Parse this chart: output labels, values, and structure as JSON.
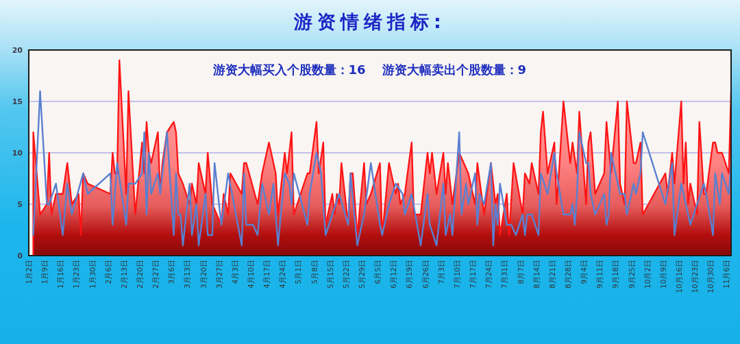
{
  "chart_data": {
    "type": "line",
    "title": "游资情绪指标:",
    "annotations": [
      "游资大幅买入个股数量：16",
      "游资大幅卖出个股数量：9"
    ],
    "xlim": [
      "--01-02",
      "--11-08"
    ],
    "xticks": [
      {
        "value": "--01-02",
        "label": "1月2日"
      },
      {
        "value": "--01-09",
        "label": "1月9日"
      },
      {
        "value": "--01-16",
        "label": "1月16日"
      },
      {
        "value": "--01-23",
        "label": "1月23日"
      },
      {
        "value": "--01-30",
        "label": "1月30日"
      },
      {
        "value": "--02-06",
        "label": "2月6日"
      },
      {
        "value": "--02-13",
        "label": "2月13日"
      },
      {
        "value": "--02-20",
        "label": "2月20日"
      },
      {
        "value": "--02-27",
        "label": "2月27日"
      },
      {
        "value": "--03-06",
        "label": "3月6日"
      },
      {
        "value": "--03-13",
        "label": "3月13日"
      },
      {
        "value": "--03-20",
        "label": "3月20日"
      },
      {
        "value": "--03-27",
        "label": "3月27日"
      },
      {
        "value": "--04-03",
        "label": "4月3日"
      },
      {
        "value": "--04-10",
        "label": "4月10日"
      },
      {
        "value": "--04-17",
        "label": "4月17日"
      },
      {
        "value": "--04-24",
        "label": "4月24日"
      },
      {
        "value": "--05-01",
        "label": "5月1日"
      },
      {
        "value": "--05-08",
        "label": "5月8日"
      },
      {
        "value": "--05-15",
        "label": "5月15日"
      },
      {
        "value": "--05-22",
        "label": "5月22日"
      },
      {
        "value": "--05-29",
        "label": "5月29日"
      },
      {
        "value": "--06-05",
        "label": "6月5日"
      },
      {
        "value": "--06-12",
        "label": "6月12日"
      },
      {
        "value": "--06-19",
        "label": "6月19日"
      },
      {
        "value": "--06-26",
        "label": "6月26日"
      },
      {
        "value": "--07-03",
        "label": "7月3日"
      },
      {
        "value": "--07-10",
        "label": "7月10日"
      },
      {
        "value": "--07-17",
        "label": "7月17日"
      },
      {
        "value": "--07-24",
        "label": "7月24日"
      },
      {
        "value": "--07-31",
        "label": "7月31日"
      },
      {
        "value": "--08-07",
        "label": "8月7日"
      },
      {
        "value": "--08-14",
        "label": "8月14日"
      },
      {
        "value": "--08-21",
        "label": "8月21日"
      },
      {
        "value": "--08-28",
        "label": "8月28日"
      },
      {
        "value": "--09-04",
        "label": "9月4日"
      },
      {
        "value": "--09-11",
        "label": "9月11日"
      },
      {
        "value": "--09-18",
        "label": "9月18日"
      },
      {
        "value": "--09-25",
        "label": "9月25日"
      },
      {
        "value": "--10-02",
        "label": "10月2日"
      },
      {
        "value": "--10-09",
        "label": "10月9日"
      },
      {
        "value": "--10-16",
        "label": "10月16日"
      },
      {
        "value": "--10-23",
        "label": "10月23日"
      },
      {
        "value": "--10-30",
        "label": "10月30日"
      },
      {
        "value": "--11-06",
        "label": "11月6日"
      }
    ],
    "ylim": [
      0,
      20
    ],
    "yticks": [
      0,
      5,
      10,
      15,
      20
    ],
    "grid": "y",
    "series": [
      {
        "type": "area",
        "color": "#ff1414",
        "x": [
          "--01-04",
          "--01-07",
          "--01-10",
          "--01-11",
          "--01-12",
          "--01-14",
          "--01-17",
          "--01-19",
          "--01-21",
          "--01-24",
          "--01-25",
          "--01-26",
          "--01-28",
          "--02-07",
          "--02-08",
          "--02-09",
          "--02-10",
          "--02-11",
          "--02-14",
          "--02-15",
          "--02-18",
          "--02-21",
          "--02-22",
          "--02-23",
          "--02-24",
          "--02-25",
          "--02-28",
          "--03-01",
          "--03-02",
          "--03-04",
          "--03-07",
          "--03-08",
          "--03-09",
          "--03-11",
          "--03-14",
          "--03-15",
          "--03-17",
          "--03-18",
          "--03-21",
          "--03-22",
          "--03-24",
          "--03-28",
          "--03-29",
          "--03-31",
          "--04-01",
          "--04-06",
          "--04-07",
          "--04-08",
          "--04-13",
          "--04-15",
          "--04-18",
          "--04-21",
          "--04-22",
          "--04-25",
          "--04-26",
          "--04-28",
          "--04-29",
          "--05-05",
          "--05-06",
          "--05-09",
          "--05-10",
          "--05-12",
          "--05-13",
          "--05-16",
          "--05-17",
          "--05-18",
          "--05-19",
          "--05-20",
          "--05-23",
          "--05-24",
          "--05-25",
          "--05-27",
          "--05-30",
          "--05-31",
          "--06-02",
          "--06-06",
          "--06-07",
          "--06-10",
          "--06-13",
          "--06-14",
          "--06-15",
          "--06-17",
          "--06-20",
          "--06-21",
          "--06-24",
          "--06-27",
          "--06-28",
          "--06-29",
          "--07-01",
          "--07-04",
          "--07-05",
          "--07-06",
          "--07-08",
          "--07-11",
          "--07-15",
          "--07-18",
          "--07-19",
          "--07-22",
          "--07-25",
          "--07-27",
          "--07-28",
          "--07-29",
          "--08-01",
          "--08-02",
          "--08-04",
          "--08-08",
          "--08-09",
          "--08-11",
          "--08-12",
          "--08-15",
          "--08-16",
          "--08-17",
          "--08-19",
          "--08-22",
          "--08-23",
          "--08-24",
          "--08-26",
          "--08-29",
          "--08-30",
          "--09-01",
          "--09-02",
          "--09-05",
          "--09-06",
          "--09-07",
          "--09-09",
          "--09-13",
          "--09-14",
          "--09-16",
          "--09-19",
          "--09-20",
          "--09-22",
          "--09-23",
          "--09-26",
          "--09-27",
          "--09-29",
          "--09-30",
          "--10-10",
          "--10-11",
          "--10-13",
          "--10-14",
          "--10-17",
          "--10-18",
          "--10-19",
          "--10-20",
          "--10-21",
          "--10-24",
          "--10-25",
          "--10-27",
          "--10-28",
          "--10-31",
          "--11-01",
          "--11-02",
          "--11-04",
          "--11-07",
          "--11-08"
        ],
        "values": [
          12,
          4,
          5,
          10,
          4,
          6,
          6,
          9,
          5,
          6,
          2,
          8,
          7,
          6,
          10,
          8,
          8,
          19,
          6,
          16,
          4,
          11,
          8,
          13,
          10,
          9,
          12,
          6,
          9,
          12,
          13,
          12,
          8,
          7,
          5,
          7,
          5,
          9,
          6,
          10,
          5,
          3,
          6,
          4,
          8,
          6,
          9,
          9,
          5,
          8,
          11,
          8,
          4,
          10,
          8,
          12,
          4,
          8,
          8,
          13,
          8,
          11,
          3,
          6,
          4,
          6,
          5,
          9,
          3,
          8,
          8,
          2,
          9,
          5,
          6,
          9,
          2,
          9,
          6,
          7,
          5,
          6,
          11,
          4,
          4,
          10,
          8,
          10,
          6,
          10,
          6,
          9,
          5,
          10,
          8,
          5,
          9,
          4,
          9,
          5,
          6,
          2,
          6,
          2,
          9,
          4,
          8,
          7,
          9,
          6,
          12,
          14,
          8,
          11,
          5,
          8,
          15,
          9,
          11,
          8,
          14,
          5,
          11,
          12,
          6,
          8,
          13,
          8,
          15,
          7,
          5,
          15,
          9,
          9,
          11,
          4,
          8,
          6,
          10,
          7,
          15,
          7,
          11,
          5,
          7,
          4,
          13,
          6,
          6,
          11,
          11,
          10,
          10,
          8,
          16
        ]
      },
      {
        "color": "#5a80d0",
        "x": [
          "--01-04",
          "--01-07",
          "--01-10",
          "--01-11",
          "--01-14",
          "--01-17",
          "--01-19",
          "--01-21",
          "--01-26",
          "--01-28",
          "--02-07",
          "--02-08",
          "--02-10",
          "--02-14",
          "--02-15",
          "--02-18",
          "--02-21",
          "--02-22",
          "--02-23",
          "--02-24",
          "--02-25",
          "--02-28",
          "--03-01",
          "--03-04",
          "--03-07",
          "--03-08",
          "--03-09",
          "--03-10",
          "--03-11",
          "--03-14",
          "--03-15",
          "--03-17",
          "--03-18",
          "--03-21",
          "--03-22",
          "--03-24",
          "--03-25",
          "--03-28",
          "--03-31",
          "--04-06",
          "--04-07",
          "--04-08",
          "--04-11",
          "--04-13",
          "--04-15",
          "--04-18",
          "--04-20",
          "--04-22",
          "--04-25",
          "--04-27",
          "--04-28",
          "--04-29",
          "--05-05",
          "--05-06",
          "--05-09",
          "--05-11",
          "--05-13",
          "--05-16",
          "--05-19",
          "--05-23",
          "--05-24",
          "--05-27",
          "--05-30",
          "--06-02",
          "--06-06",
          "--06-07",
          "--06-09",
          "--06-10",
          "--06-13",
          "--06-16",
          "--06-17",
          "--06-20",
          "--06-24",
          "--06-27",
          "--06-28",
          "--07-01",
          "--07-04",
          "--07-05",
          "--07-07",
          "--07-08",
          "--07-11",
          "--07-12",
          "--07-14",
          "--07-15",
          "--07-18",
          "--07-19",
          "--07-20",
          "--07-22",
          "--07-25",
          "--07-26",
          "--07-27",
          "--07-28",
          "--07-29",
          "--08-01",
          "--08-03",
          "--08-05",
          "--08-08",
          "--08-09",
          "--08-10",
          "--08-12",
          "--08-15",
          "--08-16",
          "--08-19",
          "--08-22",
          "--08-23",
          "--08-26",
          "--08-29",
          "--08-30",
          "--08-31",
          "--09-01",
          "--09-02",
          "--09-05",
          "--09-06",
          "--09-07",
          "--09-09",
          "--09-13",
          "--09-14",
          "--09-15",
          "--09-16",
          "--09-19",
          "--09-20",
          "--09-22",
          "--09-23",
          "--09-26",
          "--09-27",
          "--09-29",
          "--09-30",
          "--10-10",
          "--10-13",
          "--10-14",
          "--10-17",
          "--10-18",
          "--10-19",
          "--10-21",
          "--10-24",
          "--10-27",
          "--10-28",
          "--10-31",
          "--11-01",
          "--11-03",
          "--11-04",
          "--11-07",
          "--11-08"
        ],
        "values": [
          2,
          16,
          5,
          5,
          7,
          2,
          7,
          4,
          8,
          6,
          8,
          3,
          9,
          3,
          7,
          7,
          8,
          12,
          4,
          10,
          6,
          8,
          6,
          12,
          2,
          8,
          4,
          4,
          1,
          7,
          2,
          5,
          1,
          6,
          2,
          2,
          9,
          3,
          8,
          1,
          8,
          3,
          3,
          2,
          7,
          4,
          7,
          1,
          8,
          7,
          5,
          8,
          3,
          6,
          10,
          8,
          2,
          4,
          6,
          3,
          8,
          1,
          4,
          9,
          3,
          2,
          4,
          5,
          7,
          6,
          4,
          6,
          1,
          6,
          3,
          1,
          7,
          2,
          4,
          2,
          12,
          4,
          7,
          5,
          8,
          3,
          6,
          5,
          9,
          1,
          5,
          3,
          7,
          3,
          3,
          2,
          4,
          2,
          4,
          4,
          2,
          8,
          6,
          10,
          8,
          4,
          4,
          5,
          3,
          6,
          12,
          9,
          9,
          6,
          4,
          6,
          3,
          4,
          10,
          7,
          6,
          6,
          4,
          7,
          6,
          8,
          12,
          5,
          9,
          2,
          7,
          6,
          5,
          3,
          5,
          7,
          6,
          2,
          8,
          5,
          8,
          6,
          9
        ]
      }
    ]
  }
}
